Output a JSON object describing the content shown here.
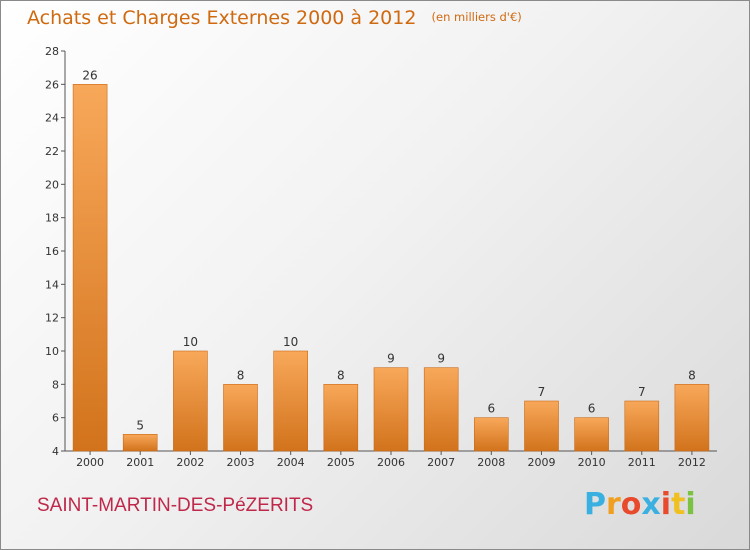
{
  "header": {
    "title": "Achats et Charges Externes 2000 à 2012",
    "unit": "(en milliers d'€)"
  },
  "footer": {
    "commune": "SAINT-MARTIN-DES-PéZERITS",
    "logo_letters": [
      "P",
      "r",
      "o",
      "x",
      "i",
      "t",
      "i"
    ],
    "logo_colors": [
      "#3ab0e0",
      "#f0a020",
      "#e84a2c",
      "#3ab0e0",
      "#e84a2c",
      "#f0c020",
      "#7cc242"
    ]
  },
  "colors": {
    "bar_light": "#f8a85a",
    "bar_dark": "#d2731c",
    "accent": "#d06a10"
  },
  "chart_data": {
    "type": "bar",
    "title": "Achats et Charges Externes 2000 à 2012",
    "subtitle": "(en milliers d'€)",
    "xlabel": "",
    "ylabel": "",
    "categories": [
      "2000",
      "2001",
      "2002",
      "2003",
      "2004",
      "2005",
      "2006",
      "2007",
      "2008",
      "2009",
      "2010",
      "2011",
      "2012"
    ],
    "values": [
      26,
      5,
      10,
      8,
      10,
      8,
      9,
      9,
      6,
      7,
      6,
      7,
      8
    ],
    "ylim": [
      4,
      28
    ],
    "yticks": [
      4,
      6,
      8,
      10,
      12,
      14,
      16,
      18,
      20,
      22,
      24,
      26,
      28
    ],
    "data_labels": true,
    "grid": false,
    "legend": "none"
  }
}
